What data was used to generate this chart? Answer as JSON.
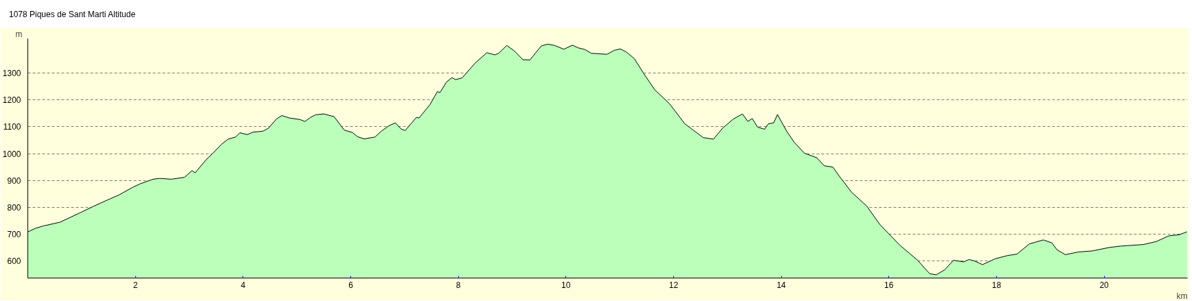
{
  "chart_data": {
    "type": "area",
    "title": "1078 Piques de Sant Marti Altitude",
    "xlabel": "km",
    "ylabel": "m",
    "x": [
      0,
      0.14,
      0.29,
      0.6,
      0.97,
      1.21,
      1.45,
      1.7,
      1.94,
      2.09,
      2.33,
      2.45,
      2.67,
      2.91,
      3.05,
      3.11,
      3.31,
      3.43,
      3.6,
      3.72,
      3.86,
      3.94,
      4.08,
      4.18,
      4.37,
      4.47,
      4.62,
      4.72,
      4.86,
      5.06,
      5.15,
      5.25,
      5.35,
      5.5,
      5.69,
      5.88,
      6.03,
      6.13,
      6.25,
      6.45,
      6.57,
      6.71,
      6.83,
      6.93,
      7.01,
      7.22,
      7.27,
      7.47,
      7.61,
      7.66,
      7.78,
      7.88,
      7.95,
      8.07,
      8.31,
      8.53,
      8.68,
      8.75,
      8.9,
      9.04,
      9.2,
      9.33,
      9.43,
      9.54,
      9.66,
      9.79,
      9.96,
      10.12,
      10.23,
      10.35,
      10.47,
      10.76,
      10.9,
      11.01,
      11.12,
      11.27,
      11.44,
      11.65,
      11.92,
      12.21,
      12.55,
      12.74,
      12.91,
      13.11,
      13.28,
      13.38,
      13.46,
      13.56,
      13.69,
      13.76,
      13.86,
      13.93,
      14.1,
      14.24,
      14.43,
      14.66,
      14.8,
      14.96,
      15.08,
      15.31,
      15.59,
      15.83,
      16.2,
      16.53,
      16.76,
      16.88,
      17.04,
      17.2,
      17.39,
      17.49,
      17.6,
      17.74,
      17.98,
      18.21,
      18.38,
      18.61,
      18.87,
      19.03,
      19.12,
      19.28,
      19.52,
      19.78,
      20.1,
      20.31,
      20.74,
      20.97,
      21.2,
      21.39,
      21.54
    ],
    "series": [
      {
        "color": "#bbffbb",
        "values": [
          709,
          722,
          731,
          745,
          780,
          803,
          825,
          847,
          874,
          888,
          905,
          908,
          905,
          912,
          937,
          929,
          977,
          1000,
          1035,
          1054,
          1062,
          1078,
          1071,
          1080,
          1084,
          1095,
          1129,
          1142,
          1133,
          1127,
          1120,
          1135,
          1145,
          1148,
          1138,
          1088,
          1079,
          1063,
          1055,
          1062,
          1084,
          1104,
          1115,
          1093,
          1086,
          1135,
          1133,
          1182,
          1231,
          1228,
          1267,
          1283,
          1276,
          1282,
          1337,
          1376,
          1368,
          1374,
          1403,
          1383,
          1350,
          1349,
          1374,
          1401,
          1408,
          1403,
          1389,
          1404,
          1394,
          1388,
          1374,
          1370,
          1385,
          1390,
          1379,
          1354,
          1300,
          1238,
          1187,
          1111,
          1060,
          1054,
          1095,
          1129,
          1148,
          1120,
          1131,
          1099,
          1091,
          1111,
          1115,
          1146,
          1084,
          1043,
          1002,
          985,
          955,
          950,
          916,
          856,
          805,
          737,
          660,
          604,
          553,
          549,
          568,
          603,
          597,
          606,
          600,
          587,
          609,
          621,
          626,
          664,
          679,
          668,
          643,
          624,
          634,
          638,
          651,
          656,
          662,
          673,
          694,
          698,
          709
        ]
      }
    ],
    "xlim": [
      0,
      21.55
    ],
    "ylim": [
      537,
      1428
    ],
    "xticks": [
      2,
      4,
      6,
      8,
      10,
      12,
      14,
      16,
      18,
      20
    ],
    "yticks": [
      600,
      700,
      800,
      900,
      1000,
      1100,
      1200,
      1300
    ],
    "grid": "y"
  }
}
